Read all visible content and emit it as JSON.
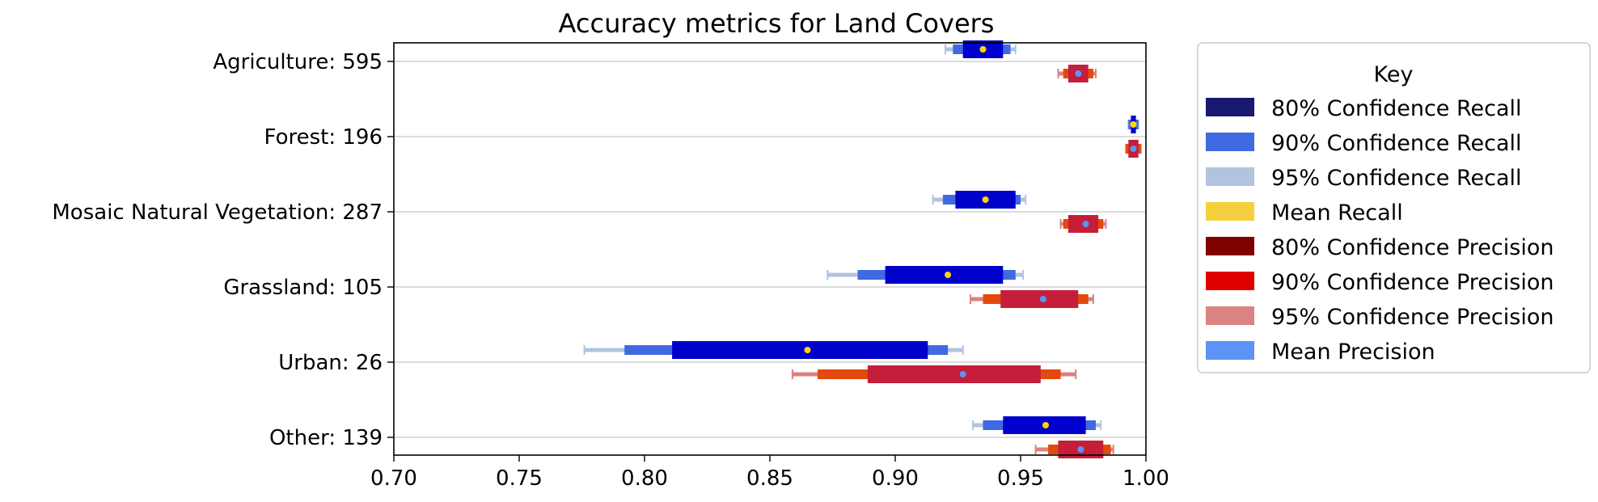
{
  "chart_data": {
    "type": "bar",
    "title": "Accuracy metrics for Land Covers",
    "xlim": [
      0.7,
      1.0
    ],
    "xticks": [
      "0.70",
      "0.75",
      "0.80",
      "0.85",
      "0.90",
      "0.95",
      "1.00"
    ],
    "xtick_values": [
      0.7,
      0.75,
      0.8,
      0.85,
      0.9,
      0.95,
      1.0
    ],
    "grid": "horizontal",
    "categories": [
      "Agriculture: 595",
      "Forest: 196",
      "Mosaic Natural Vegetation: 287",
      "Grassland: 105",
      "Urban: 26",
      "Other: 139"
    ],
    "series": [
      {
        "name": "Recall",
        "mean": [
          0.935,
          0.995,
          0.936,
          0.921,
          0.865,
          0.96
        ],
        "ci80": [
          [
            0.927,
            0.943
          ],
          [
            0.994,
            0.996
          ],
          [
            0.924,
            0.948
          ],
          [
            0.896,
            0.943
          ],
          [
            0.811,
            0.913
          ],
          [
            0.943,
            0.976
          ]
        ],
        "ci90": [
          [
            0.923,
            0.946
          ],
          [
            0.993,
            0.997
          ],
          [
            0.919,
            0.95
          ],
          [
            0.885,
            0.948
          ],
          [
            0.792,
            0.921
          ],
          [
            0.935,
            0.98
          ]
        ],
        "ci95": [
          [
            0.92,
            0.948
          ],
          [
            0.993,
            0.997
          ],
          [
            0.915,
            0.952
          ],
          [
            0.873,
            0.951
          ],
          [
            0.776,
            0.927
          ],
          [
            0.931,
            0.982
          ]
        ]
      },
      {
        "name": "Precision",
        "mean": [
          0.973,
          0.995,
          0.976,
          0.959,
          0.927,
          0.974
        ],
        "ci80": [
          [
            0.969,
            0.977
          ],
          [
            0.993,
            0.997
          ],
          [
            0.969,
            0.981
          ],
          [
            0.942,
            0.973
          ],
          [
            0.889,
            0.958
          ],
          [
            0.965,
            0.983
          ]
        ],
        "ci90": [
          [
            0.967,
            0.979
          ],
          [
            0.992,
            0.998
          ],
          [
            0.967,
            0.983
          ],
          [
            0.935,
            0.977
          ],
          [
            0.869,
            0.966
          ],
          [
            0.961,
            0.986
          ]
        ],
        "ci95": [
          [
            0.965,
            0.98
          ],
          [
            0.992,
            0.998
          ],
          [
            0.966,
            0.984
          ],
          [
            0.93,
            0.979
          ],
          [
            0.859,
            0.972
          ],
          [
            0.956,
            0.987
          ]
        ]
      }
    ],
    "legend": {
      "title": "Key",
      "placement": "outside-right",
      "entries": [
        {
          "label": "80% Confidence Recall",
          "color": "#191970"
        },
        {
          "label": "90% Confidence Recall",
          "color": "#4169e1"
        },
        {
          "label": "95% Confidence Recall",
          "color": "#b0c4de"
        },
        {
          "label": "Mean Recall",
          "color": "#f4d03f"
        },
        {
          "label": "80% Confidence Precision",
          "color": "#800000"
        },
        {
          "label": "90% Confidence Precision",
          "color": "#e00000"
        },
        {
          "label": "95% Confidence Precision",
          "color": "#db8282"
        },
        {
          "label": "Mean Precision",
          "color": "#5b93f7"
        }
      ]
    },
    "mark_colors": {
      "recall_ci80": "#0000cd",
      "recall_ci90": "#4169e1",
      "recall_ci95": "#b0c4de",
      "recall_mean": "#ffd700",
      "precision_ci80": "#c41e3a",
      "precision_ci90": "#e34a0c",
      "precision_ci95": "#db8282",
      "precision_mean": "#5b93f7"
    }
  }
}
